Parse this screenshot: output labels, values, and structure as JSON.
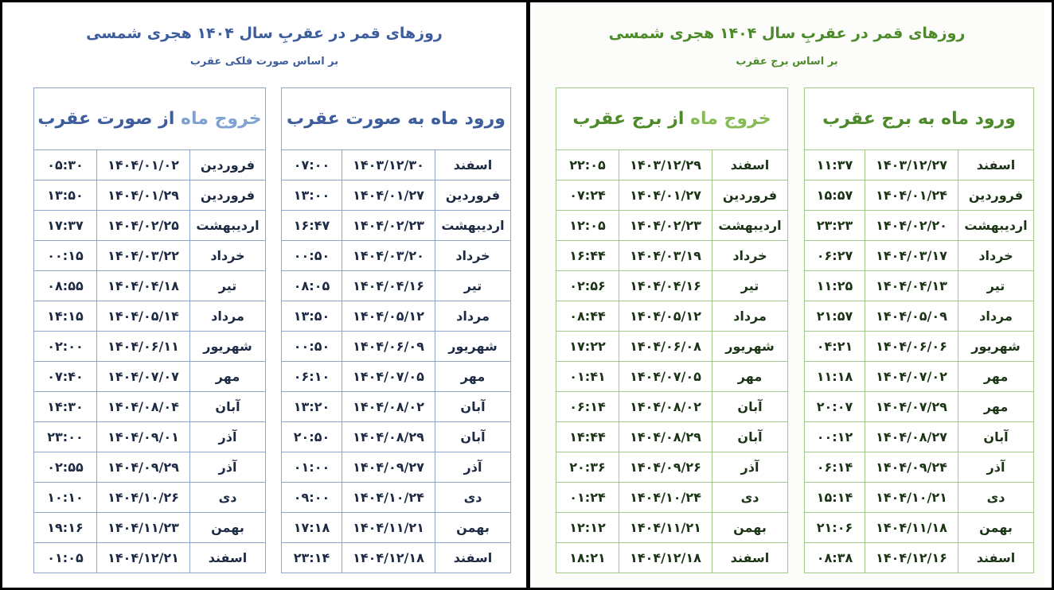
{
  "panels": [
    {
      "title": "روزهای قمر در عقربِ سال ۱۴۰۴ هجری شمسی",
      "subtitle": "بر اساس صورت فلکی عقرب",
      "tables": [
        {
          "heading": [
            "ورود ماه به صورت عقرب"
          ],
          "rows": [
            [
              "اسفند",
              "۱۴۰۳/۱۲/۳۰",
              "۰۷:۰۰"
            ],
            [
              "فروردین",
              "۱۴۰۴/۰۱/۲۷",
              "۱۳:۰۰"
            ],
            [
              "اردیبهشت",
              "۱۴۰۴/۰۲/۲۳",
              "۱۶:۴۷"
            ],
            [
              "خرداد",
              "۱۴۰۴/۰۳/۲۰",
              "۰۰:۵۰"
            ],
            [
              "تیر",
              "۱۴۰۴/۰۴/۱۶",
              "۰۸:۰۵"
            ],
            [
              "مرداد",
              "۱۴۰۴/۰۵/۱۲",
              "۱۳:۵۰"
            ],
            [
              "شهریور",
              "۱۴۰۴/۰۶/۰۹",
              "۰۰:۵۰"
            ],
            [
              "مهر",
              "۱۴۰۴/۰۷/۰۵",
              "۰۶:۱۰"
            ],
            [
              "آبان",
              "۱۴۰۴/۰۸/۰۲",
              "۱۳:۲۰"
            ],
            [
              "آبان",
              "۱۴۰۴/۰۸/۲۹",
              "۲۰:۵۰"
            ],
            [
              "آذر",
              "۱۴۰۴/۰۹/۲۷",
              "۰۱:۰۰"
            ],
            [
              "دی",
              "۱۴۰۴/۱۰/۲۴",
              "۰۹:۰۰"
            ],
            [
              "بهمن",
              "۱۴۰۴/۱۱/۲۱",
              "۱۷:۱۸"
            ],
            [
              "اسفند",
              "۱۴۰۴/۱۲/۱۸",
              "۲۳:۱۴"
            ]
          ]
        },
        {
          "heading": [
            "خروج ماه",
            "از صورت عقرب"
          ],
          "rows": [
            [
              "فروردین",
              "۱۴۰۴/۰۱/۰۲",
              "۰۵:۳۰"
            ],
            [
              "فروردین",
              "۱۴۰۴/۰۱/۲۹",
              "۱۳:۵۰"
            ],
            [
              "اردیبهشت",
              "۱۴۰۴/۰۲/۲۵",
              "۱۷:۳۷"
            ],
            [
              "خرداد",
              "۱۴۰۴/۰۳/۲۲",
              "۰۰:۱۵"
            ],
            [
              "تیر",
              "۱۴۰۴/۰۴/۱۸",
              "۰۸:۵۵"
            ],
            [
              "مرداد",
              "۱۴۰۴/۰۵/۱۴",
              "۱۴:۱۵"
            ],
            [
              "شهریور",
              "۱۴۰۴/۰۶/۱۱",
              "۰۲:۰۰"
            ],
            [
              "مهر",
              "۱۴۰۴/۰۷/۰۷",
              "۰۷:۴۰"
            ],
            [
              "آبان",
              "۱۴۰۴/۰۸/۰۴",
              "۱۴:۳۰"
            ],
            [
              "آذر",
              "۱۴۰۴/۰۹/۰۱",
              "۲۳:۰۰"
            ],
            [
              "آذر",
              "۱۴۰۴/۰۹/۲۹",
              "۰۲:۵۵"
            ],
            [
              "دی",
              "۱۴۰۴/۱۰/۲۶",
              "۱۰:۱۰"
            ],
            [
              "بهمن",
              "۱۴۰۴/۱۱/۲۳",
              "۱۹:۱۶"
            ],
            [
              "اسفند",
              "۱۴۰۴/۱۲/۲۱",
              "۰۱:۰۵"
            ]
          ]
        }
      ]
    },
    {
      "title": "روزهای قمر در عقربِ سال ۱۴۰۴ هجری شمسی",
      "subtitle": "بر اساس برج عقرب",
      "tables": [
        {
          "heading": [
            "ورود ماه به برج عقرب"
          ],
          "rows": [
            [
              "اسفند",
              "۱۴۰۳/۱۲/۲۷",
              "۱۱:۳۷"
            ],
            [
              "فروردین",
              "۱۴۰۴/۰۱/۲۴",
              "۱۵:۵۷"
            ],
            [
              "اردیبهشت",
              "۱۴۰۴/۰۲/۲۰",
              "۲۳:۲۳"
            ],
            [
              "خرداد",
              "۱۴۰۴/۰۳/۱۷",
              "۰۶:۲۷"
            ],
            [
              "تیر",
              "۱۴۰۴/۰۴/۱۳",
              "۱۱:۲۵"
            ],
            [
              "مرداد",
              "۱۴۰۴/۰۵/۰۹",
              "۲۱:۵۷"
            ],
            [
              "شهریور",
              "۱۴۰۴/۰۶/۰۶",
              "۰۴:۲۱"
            ],
            [
              "مهر",
              "۱۴۰۴/۰۷/۰۲",
              "۱۱:۱۸"
            ],
            [
              "مهر",
              "۱۴۰۴/۰۷/۲۹",
              "۲۰:۰۷"
            ],
            [
              "آبان",
              "۱۴۰۴/۰۸/۲۷",
              "۰۰:۱۲"
            ],
            [
              "آذر",
              "۱۴۰۴/۰۹/۲۴",
              "۰۶:۱۴"
            ],
            [
              "دی",
              "۱۴۰۴/۱۰/۲۱",
              "۱۵:۱۴"
            ],
            [
              "بهمن",
              "۱۴۰۴/۱۱/۱۸",
              "۲۱:۰۶"
            ],
            [
              "اسفند",
              "۱۴۰۴/۱۲/۱۶",
              "۰۸:۳۸"
            ]
          ]
        },
        {
          "heading": [
            "خروج ماه",
            "از برج عقرب"
          ],
          "rows": [
            [
              "اسفند",
              "۱۴۰۳/۱۲/۲۹",
              "۲۲:۰۵"
            ],
            [
              "فروردین",
              "۱۴۰۴/۰۱/۲۷",
              "۰۷:۲۴"
            ],
            [
              "اردیبهشت",
              "۱۴۰۴/۰۲/۲۳",
              "۱۲:۰۵"
            ],
            [
              "خرداد",
              "۱۴۰۴/۰۳/۱۹",
              "۱۶:۴۴"
            ],
            [
              "تیر",
              "۱۴۰۴/۰۴/۱۶",
              "۰۲:۵۶"
            ],
            [
              "مرداد",
              "۱۴۰۴/۰۵/۱۲",
              "۰۸:۴۴"
            ],
            [
              "شهریور",
              "۱۴۰۴/۰۶/۰۸",
              "۱۷:۲۲"
            ],
            [
              "مهر",
              "۱۴۰۴/۰۷/۰۵",
              "۰۱:۴۱"
            ],
            [
              "آبان",
              "۱۴۰۴/۰۸/۰۲",
              "۰۶:۱۴"
            ],
            [
              "آبان",
              "۱۴۰۴/۰۸/۲۹",
              "۱۴:۴۴"
            ],
            [
              "آذر",
              "۱۴۰۴/۰۹/۲۶",
              "۲۰:۳۶"
            ],
            [
              "دی",
              "۱۴۰۴/۱۰/۲۴",
              "۰۱:۲۴"
            ],
            [
              "بهمن",
              "۱۴۰۴/۱۱/۲۱",
              "۱۲:۱۲"
            ],
            [
              "اسفند",
              "۱۴۰۴/۱۲/۱۸",
              "۱۸:۲۱"
            ]
          ]
        }
      ]
    }
  ]
}
